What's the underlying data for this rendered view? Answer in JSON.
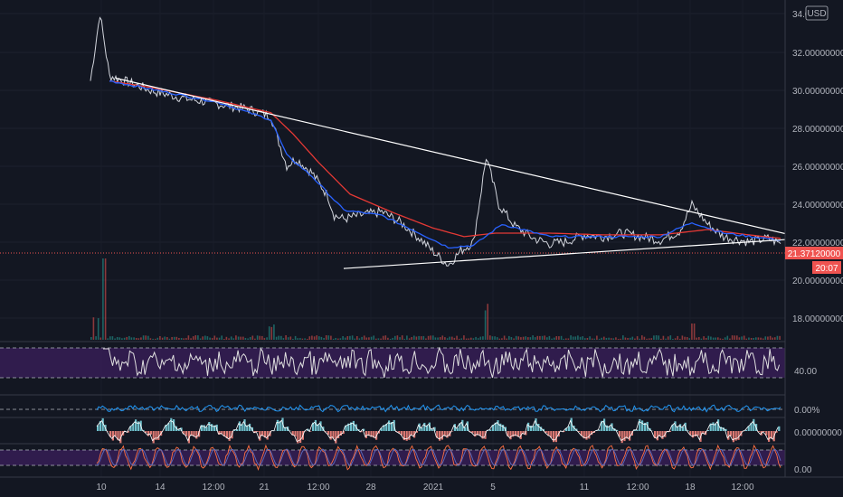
{
  "currency_button": "USD",
  "chart_data": {
    "type": "line",
    "title": "",
    "x_ticks": [
      "10",
      "14",
      "12:00",
      "21",
      "12:00",
      "28",
      "2021",
      "5",
      "11",
      "12:00",
      "18",
      "12:00"
    ],
    "y_ticks": [
      "34.0",
      "32.00000000",
      "30.00000000",
      "28.00000000",
      "26.00000000",
      "24.00000000",
      "22.00000000",
      "20.00000000",
      "18.00000000"
    ],
    "ylim": [
      17.2,
      34.4
    ],
    "current_price": "21.37120000",
    "countdown": "20:07",
    "price_path": [
      [
        0,
        30.6
      ],
      [
        3,
        34.4
      ],
      [
        6,
        30.9
      ],
      [
        9,
        30.7
      ],
      [
        14,
        30.4
      ],
      [
        20,
        30.0
      ],
      [
        30,
        29.6
      ],
      [
        40,
        29.3
      ],
      [
        50,
        29.0
      ],
      [
        57,
        28.6
      ],
      [
        59,
        27.4
      ],
      [
        62,
        25.8
      ],
      [
        65,
        26.2
      ],
      [
        70,
        25.4
      ],
      [
        75,
        24.1
      ],
      [
        77,
        23.0
      ],
      [
        80,
        22.8
      ],
      [
        85,
        23.0
      ],
      [
        92,
        23.2
      ],
      [
        98,
        22.6
      ],
      [
        104,
        21.7
      ],
      [
        108,
        21.0
      ],
      [
        113,
        20.2
      ],
      [
        117,
        21.0
      ],
      [
        121,
        21.5
      ],
      [
        125,
        26.3
      ],
      [
        129,
        23.6
      ],
      [
        134,
        22.4
      ],
      [
        140,
        21.7
      ],
      [
        145,
        21.4
      ],
      [
        150,
        21.5
      ],
      [
        156,
        21.9
      ],
      [
        162,
        21.8
      ],
      [
        168,
        22.0
      ],
      [
        174,
        21.8
      ],
      [
        180,
        21.6
      ],
      [
        186,
        22.1
      ],
      [
        190,
        23.6
      ],
      [
        195,
        22.5
      ],
      [
        200,
        21.8
      ],
      [
        208,
        21.5
      ],
      [
        214,
        21.7
      ],
      [
        218,
        21.4
      ]
    ],
    "ma_fast_path": [
      [
        6,
        30.6
      ],
      [
        20,
        30.1
      ],
      [
        40,
        29.4
      ],
      [
        57,
        28.4
      ],
      [
        62,
        26.4
      ],
      [
        70,
        25.2
      ],
      [
        80,
        23.3
      ],
      [
        92,
        23.0
      ],
      [
        104,
        22.0
      ],
      [
        113,
        21.2
      ],
      [
        121,
        21.3
      ],
      [
        130,
        22.5
      ],
      [
        145,
        21.8
      ],
      [
        162,
        21.8
      ],
      [
        180,
        21.8
      ],
      [
        190,
        22.6
      ],
      [
        200,
        22.0
      ],
      [
        218,
        21.6
      ]
    ],
    "ma_slow_path": [
      [
        6,
        30.6
      ],
      [
        20,
        30.2
      ],
      [
        40,
        29.5
      ],
      [
        57,
        28.8
      ],
      [
        64,
        27.6
      ],
      [
        72,
        26.0
      ],
      [
        82,
        24.2
      ],
      [
        95,
        23.2
      ],
      [
        108,
        22.3
      ],
      [
        118,
        21.8
      ],
      [
        128,
        22.0
      ],
      [
        145,
        22.0
      ],
      [
        162,
        21.9
      ],
      [
        180,
        21.9
      ],
      [
        195,
        22.2
      ],
      [
        208,
        21.9
      ],
      [
        218,
        21.7
      ]
    ],
    "trendline_upper": [
      [
        8,
        30.75
      ],
      [
        238,
        21.2
      ]
    ],
    "trendline_lower": [
      [
        80,
        20.0
      ],
      [
        238,
        21.85
      ]
    ],
    "osc1_level": "40.00",
    "osc2_level": "0.00%",
    "osc3_level": "0.00000000",
    "osc4_level": "0.00",
    "colors": {
      "background": "#131722",
      "price": "#d1d4dc",
      "ma_fast": "#2962ff",
      "ma_slow": "#e53935",
      "trendline": "#ffffff",
      "current_price_tag": "#ef5350",
      "osc_band": "#3b1f5c",
      "osc_line": "#e0e0e0",
      "fisher": "#2196f3",
      "histogram_up": "#80deea",
      "histogram_down": "#ff8a80",
      "stoch_k": "#ff7043",
      "stoch_d": "#5c6bc0"
    }
  }
}
